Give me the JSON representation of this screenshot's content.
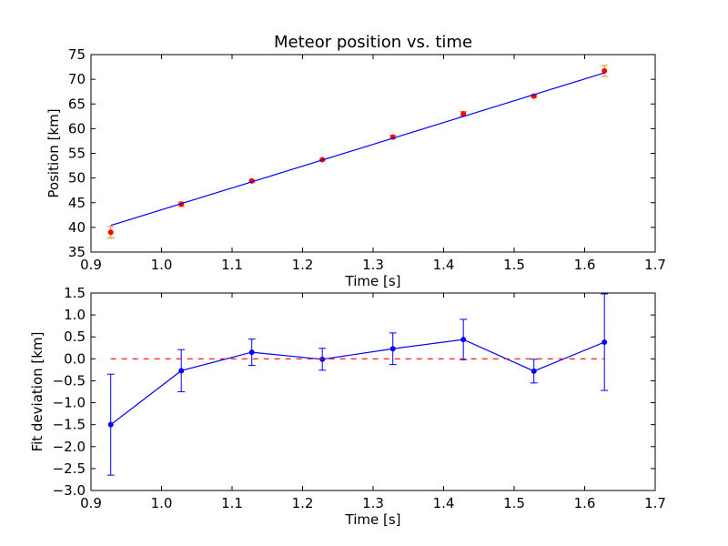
{
  "chart_data": [
    {
      "type": "scatter",
      "title": "Meteor position vs. time",
      "xlabel": "Time [s]",
      "ylabel": "Position [km]",
      "xlim": [
        0.9,
        1.7
      ],
      "ylim": [
        35,
        75
      ],
      "xticks": [
        "0.9",
        "1.0",
        "1.1",
        "1.2",
        "1.3",
        "1.4",
        "1.5",
        "1.6",
        "1.7"
      ],
      "yticks": [
        "35",
        "40",
        "45",
        "50",
        "55",
        "60",
        "65",
        "70",
        "75"
      ],
      "grid": false,
      "series": [
        {
          "kind": "points-with-error",
          "color": "#ff0000",
          "errcolor": "#ff8c00",
          "x": [
            0.928,
            1.028,
            1.128,
            1.228,
            1.328,
            1.428,
            1.528,
            1.628
          ],
          "y": [
            39.0,
            44.7,
            49.4,
            53.7,
            58.3,
            63.0,
            66.6,
            71.7
          ],
          "yerr": [
            1.15,
            0.45,
            0.3,
            0.25,
            0.38,
            0.45,
            0.27,
            1.1
          ]
        },
        {
          "kind": "fit-line",
          "color": "#0000ff",
          "x": [
            0.928,
            1.628
          ],
          "y": [
            40.4,
            71.3
          ]
        }
      ]
    },
    {
      "type": "line",
      "title": "",
      "xlabel": "Time [s]",
      "ylabel": "Fit deviation [km]",
      "xlim": [
        0.9,
        1.7
      ],
      "ylim": [
        -3.0,
        1.5
      ],
      "xticks": [
        "0.9",
        "1.0",
        "1.1",
        "1.2",
        "1.3",
        "1.4",
        "1.5",
        "1.6",
        "1.7"
      ],
      "yticks": [
        "−3.0",
        "−2.5",
        "−2.0",
        "−1.5",
        "−1.0",
        "−0.5",
        "0.0",
        "0.5",
        "1.0",
        "1.5"
      ],
      "grid": false,
      "series": [
        {
          "kind": "line-with-error",
          "color": "#0000ff",
          "x": [
            0.928,
            1.028,
            1.128,
            1.228,
            1.328,
            1.428,
            1.528,
            1.628
          ],
          "y": [
            -1.5,
            -0.27,
            0.15,
            -0.01,
            0.23,
            0.44,
            -0.28,
            0.38
          ],
          "yerr": [
            1.15,
            0.48,
            0.3,
            0.25,
            0.36,
            0.46,
            0.27,
            1.1
          ]
        },
        {
          "kind": "reference-line",
          "color": "#ff0000",
          "dashed": true,
          "x": [
            0.928,
            1.628
          ],
          "y": [
            0.0,
            0.0
          ]
        }
      ]
    }
  ]
}
